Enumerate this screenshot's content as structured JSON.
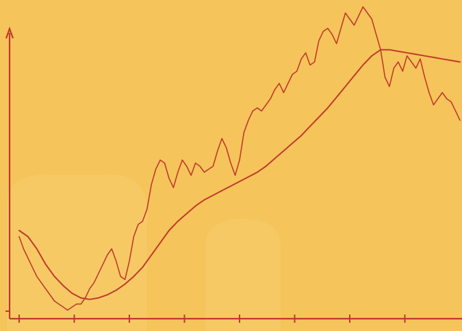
{
  "chart_data": {
    "type": "line",
    "title": "",
    "xlabel": "",
    "ylabel": "",
    "grid": false,
    "legend": "none",
    "xlim": [
      0,
      100
    ],
    "ylim": [
      0,
      100
    ],
    "x_ticks": [
      0,
      12.5,
      25,
      37.5,
      50,
      62.5,
      75,
      87.5
    ],
    "series": [
      {
        "style": "price",
        "color": "#c0392b",
        "x": [
          0,
          1,
          2,
          3,
          4,
          5,
          6,
          7,
          8,
          9,
          10,
          11,
          12,
          13,
          14,
          15,
          16,
          17,
          18,
          19,
          20,
          21,
          22,
          23,
          24,
          25,
          26,
          27,
          28,
          29,
          30,
          31,
          32,
          33,
          34,
          35,
          36,
          37,
          38,
          39,
          40,
          41,
          42,
          43,
          44,
          45,
          46,
          47,
          48,
          49,
          50,
          51,
          52,
          53,
          54,
          55,
          56,
          57,
          58,
          59,
          60,
          61,
          62,
          63,
          64,
          65,
          66,
          67,
          68,
          69,
          70,
          71,
          72,
          73,
          74,
          75,
          76,
          77,
          78,
          79,
          80,
          81,
          82,
          83,
          84,
          85,
          86,
          87,
          88,
          89,
          90,
          91,
          92,
          93,
          94,
          95,
          96,
          97,
          98,
          99,
          100
        ],
        "y": [
          25,
          21,
          18,
          15,
          12,
          10,
          8,
          6,
          4,
          3,
          2,
          1,
          2,
          3,
          3,
          5,
          8,
          10,
          13,
          16,
          19,
          21,
          17,
          12,
          11,
          17,
          25,
          29,
          30,
          34,
          42,
          47,
          50,
          49,
          44,
          41,
          46,
          50,
          48,
          45,
          49,
          48,
          46,
          47,
          48,
          53,
          57,
          54,
          49,
          45,
          50,
          59,
          63,
          66,
          67,
          66,
          68,
          70,
          73,
          75,
          72,
          75,
          78,
          79,
          83,
          85,
          81,
          82,
          89,
          92,
          93,
          91,
          88,
          93,
          98,
          96,
          94,
          97,
          100,
          98,
          96,
          91,
          86,
          77,
          74,
          80,
          82,
          79,
          84,
          82,
          80,
          83,
          77,
          72,
          68,
          70,
          72,
          70,
          69,
          66,
          63
        ]
      },
      {
        "style": "moving-average",
        "color": "#c0392b",
        "x": [
          0,
          2,
          4,
          6,
          8,
          10,
          12,
          14,
          16,
          18,
          20,
          22,
          24,
          26,
          28,
          30,
          32,
          34,
          36,
          38,
          40,
          42,
          44,
          46,
          48,
          50,
          52,
          54,
          56,
          58,
          60,
          62,
          64,
          66,
          68,
          70,
          72,
          74,
          76,
          78,
          80,
          82,
          84,
          86,
          88,
          90,
          92,
          94,
          96,
          98,
          100
        ],
        "y": [
          27,
          25,
          21,
          16,
          12,
          9,
          6.5,
          5,
          4.5,
          5,
          6,
          7.5,
          9.5,
          12,
          15,
          19,
          23,
          27,
          30,
          32.5,
          35,
          37,
          38.5,
          40,
          41.5,
          43,
          44.5,
          46,
          48,
          50.5,
          53,
          55.5,
          58,
          61,
          64,
          67,
          70.5,
          74,
          77.5,
          81,
          84,
          86,
          86,
          85.5,
          85,
          84.5,
          84,
          83.5,
          83,
          82.5,
          82
        ]
      }
    ]
  }
}
